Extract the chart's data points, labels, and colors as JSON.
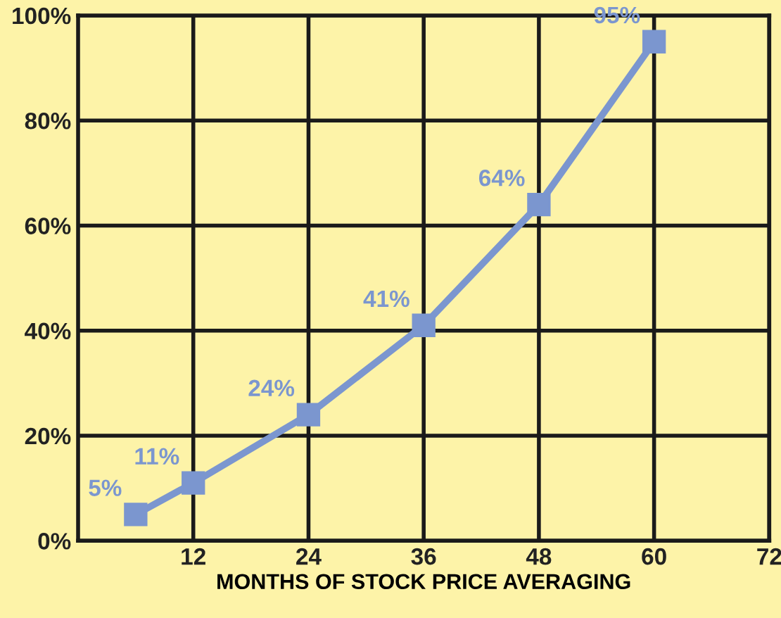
{
  "chart_data": {
    "type": "line",
    "xlabel": "MONTHS OF STOCK PRICE AVERAGING",
    "x": [
      6,
      12,
      24,
      36,
      48,
      60
    ],
    "series": [
      {
        "color": "#7b96cf",
        "values": [
          5,
          11,
          24,
          41,
          64,
          95
        ],
        "value_labels": [
          "5%",
          "11%",
          "24%",
          "41%",
          "64%",
          "95%"
        ]
      }
    ],
    "xlim": [
      0,
      72
    ],
    "xticks": [
      12,
      24,
      36,
      48,
      60,
      72
    ],
    "ylim": [
      0,
      100
    ],
    "yticks": [
      {
        "value": 0,
        "label": "0%"
      },
      {
        "value": 20,
        "label": "20%"
      },
      {
        "value": 40,
        "label": "40%"
      },
      {
        "value": 60,
        "label": "60%"
      },
      {
        "value": 80,
        "label": "80%"
      },
      {
        "value": 100,
        "label": "100%"
      }
    ],
    "grid": true,
    "marker": "square",
    "line_style": "solid",
    "legend": false
  }
}
